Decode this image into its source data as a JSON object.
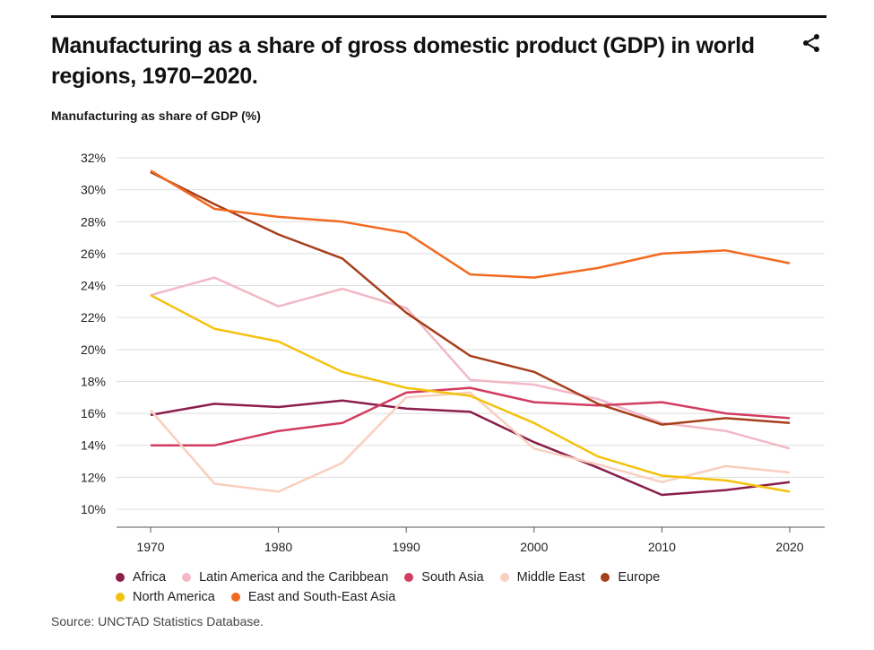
{
  "header": {
    "title": "Manufacturing as a share of gross domestic product (GDP) in world regions, 1970–2020.",
    "share_icon": "share-icon"
  },
  "source": "Source: UNCTAD Statistics Database.",
  "chart_data": {
    "type": "line",
    "title": "Manufacturing as a share of gross domestic product (GDP) in world regions, 1970–2020.",
    "xlabel": "",
    "ylabel": "Manufacturing as share of GDP (%)",
    "x": [
      1970,
      1975,
      1980,
      1985,
      1990,
      1995,
      2000,
      2005,
      2010,
      2015,
      2020
    ],
    "x_ticks": [
      "1970",
      "1980",
      "1990",
      "2000",
      "2010",
      "2020"
    ],
    "y_ticks": [
      "10%",
      "12%",
      "14%",
      "16%",
      "18%",
      "20%",
      "22%",
      "24%",
      "26%",
      "28%",
      "30%",
      "32%"
    ],
    "ylim": [
      10,
      32
    ],
    "grid": "horizontal",
    "legend_position": "bottom",
    "series": [
      {
        "name": "Africa",
        "color": "#8b1e4a",
        "values": [
          15.9,
          16.6,
          16.4,
          16.8,
          16.3,
          16.1,
          14.2,
          12.6,
          10.9,
          11.2,
          11.7
        ]
      },
      {
        "name": "Latin America and the Caribbean",
        "color": "#f2b8c6",
        "values": [
          23.4,
          24.5,
          22.7,
          23.8,
          22.6,
          18.1,
          17.8,
          16.9,
          15.4,
          14.9,
          13.8
        ]
      },
      {
        "name": "South Asia",
        "color": "#d23c5f",
        "values": [
          14.0,
          14.0,
          14.9,
          15.4,
          17.3,
          17.6,
          16.7,
          16.5,
          16.7,
          16.0,
          15.7
        ]
      },
      {
        "name": "Middle East",
        "color": "#f9cfbf",
        "values": [
          16.2,
          11.6,
          11.1,
          12.9,
          17.0,
          17.3,
          13.8,
          12.8,
          11.7,
          12.7,
          12.3
        ]
      },
      {
        "name": "Europe",
        "color": "#a63f1c",
        "values": [
          31.1,
          29.1,
          27.2,
          25.7,
          22.3,
          19.6,
          18.6,
          16.6,
          15.3,
          15.7,
          15.4
        ]
      },
      {
        "name": "North America",
        "color": "#f4c20d",
        "values": [
          23.4,
          21.3,
          20.5,
          18.6,
          17.6,
          17.1,
          15.4,
          13.3,
          12.1,
          11.8,
          11.1
        ]
      },
      {
        "name": "East and South-East Asia",
        "color": "#f26a21",
        "values": [
          31.2,
          28.8,
          28.3,
          28.0,
          27.3,
          24.7,
          24.5,
          25.1,
          26.0,
          26.2,
          25.4
        ]
      }
    ]
  }
}
